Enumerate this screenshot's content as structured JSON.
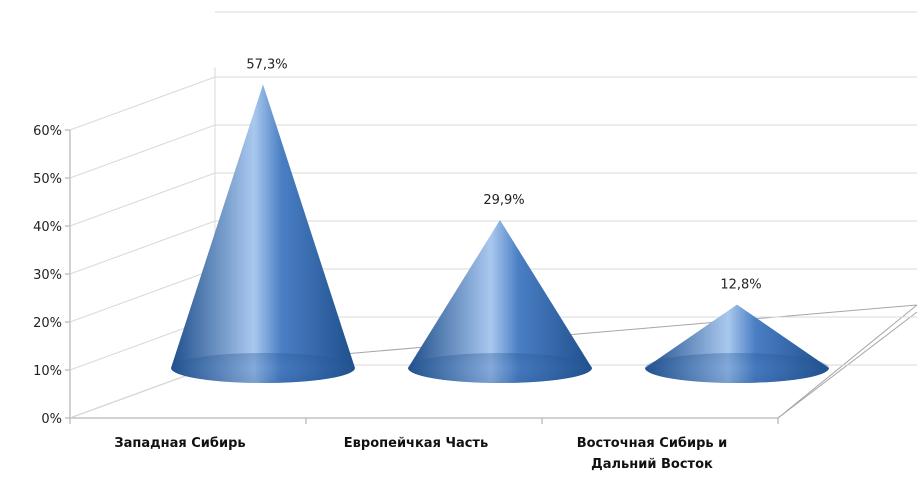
{
  "chart_data": {
    "type": "bar",
    "style": "3d-cone",
    "title": "",
    "xlabel": "",
    "ylabel": "",
    "categories": [
      [
        "Западная Сибирь"
      ],
      [
        "Европейчкая Часть"
      ],
      [
        "Восточная Сибирь и",
        "Дальний Восток"
      ]
    ],
    "values": [
      57.3,
      29.9,
      12.8
    ],
    "data_labels": [
      "57,3%",
      "29,9%",
      "12,8%"
    ],
    "yticks": [
      "0%",
      "10%",
      "20%",
      "30%",
      "40%",
      "50%",
      "60%"
    ],
    "ylim": [
      0,
      60
    ],
    "grid": true,
    "legend": "none",
    "colors": {
      "cone_dark": "#1f4f8c",
      "cone_mid": "#4a7fc4",
      "cone_light": "#a9c8ee",
      "grid": "#d9d9d9",
      "axis": "#a6a6a6"
    }
  }
}
